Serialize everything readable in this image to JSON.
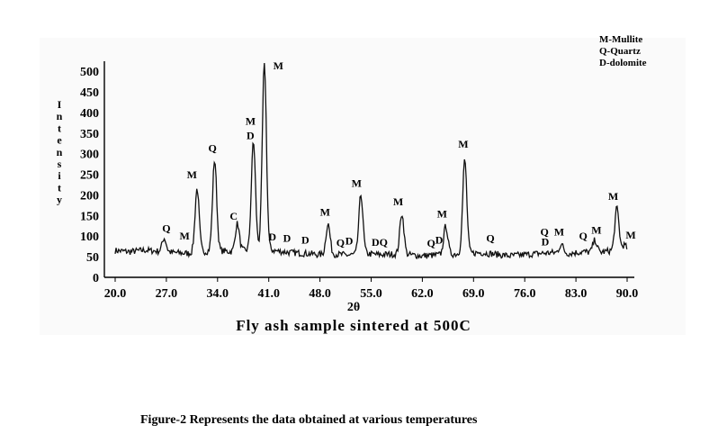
{
  "chart_data": {
    "type": "line",
    "subtitle": "Fly ash sample sintered at 500C",
    "xlabel": "2θ",
    "ylabel": "Intensity",
    "xlim": [
      20.0,
      90.0
    ],
    "ylim": [
      0,
      520
    ],
    "x_ticks": [
      "20.0",
      "27.0",
      "34.0",
      "41.0",
      "48.0",
      "55.0",
      "62.0",
      "69.0",
      "76.0",
      "83.0",
      "90.0"
    ],
    "x_tick_values": [
      20,
      27,
      34,
      41,
      48,
      55,
      62,
      69,
      76,
      83,
      90
    ],
    "y_ticks": [
      "0",
      "50",
      "100",
      "150",
      "200",
      "250",
      "300",
      "350",
      "400",
      "450",
      "500"
    ],
    "y_tick_values": [
      0,
      50,
      100,
      150,
      200,
      250,
      300,
      350,
      400,
      450,
      500
    ],
    "legend": [
      "M-Mullite",
      "Q-Quartz",
      "D-dolomite"
    ],
    "baseline": [
      [
        20,
        65
      ],
      [
        22,
        62
      ],
      [
        24,
        66
      ],
      [
        26,
        63
      ],
      [
        28,
        60
      ],
      [
        30,
        58
      ],
      [
        32,
        62
      ],
      [
        34,
        65
      ],
      [
        36,
        62
      ],
      [
        38,
        66
      ],
      [
        40,
        72
      ],
      [
        42,
        64
      ],
      [
        44,
        60
      ],
      [
        46,
        58
      ],
      [
        48,
        55
      ],
      [
        50,
        56
      ],
      [
        52,
        54
      ],
      [
        54,
        58
      ],
      [
        56,
        55
      ],
      [
        58,
        56
      ],
      [
        60,
        55
      ],
      [
        62,
        52
      ],
      [
        64,
        54
      ],
      [
        66,
        56
      ],
      [
        68,
        58
      ],
      [
        70,
        60
      ],
      [
        72,
        56
      ],
      [
        74,
        52
      ],
      [
        76,
        55
      ],
      [
        78,
        58
      ],
      [
        80,
        60
      ],
      [
        82,
        58
      ],
      [
        84,
        62
      ],
      [
        86,
        60
      ],
      [
        88,
        65
      ],
      [
        90,
        66
      ]
    ],
    "peaks": [
      {
        "x": 26.7,
        "y": 95,
        "label": "Q"
      },
      {
        "x": 31.2,
        "y": 215,
        "label": "M"
      },
      {
        "x": 33.6,
        "y": 285,
        "label": "Q"
      },
      {
        "x": 36.7,
        "y": 130,
        "label": "C"
      },
      {
        "x": 38.9,
        "y": 330,
        "label": "M/D"
      },
      {
        "x": 40.4,
        "y": 520,
        "label": "M"
      },
      {
        "x": 49.1,
        "y": 130,
        "label": "M"
      },
      {
        "x": 53.6,
        "y": 200,
        "label": "M"
      },
      {
        "x": 59.2,
        "y": 155,
        "label": "M"
      },
      {
        "x": 65.2,
        "y": 125,
        "label": "M"
      },
      {
        "x": 67.8,
        "y": 285,
        "label": "M"
      },
      {
        "x": 81.0,
        "y": 80,
        "label": "M"
      },
      {
        "x": 85.6,
        "y": 90,
        "label": "M"
      },
      {
        "x": 88.6,
        "y": 168,
        "label": "M"
      },
      {
        "x": 89.6,
        "y": 78,
        "label": "M"
      }
    ],
    "peak_labels": [
      {
        "text": "Q",
        "x": 27.0,
        "y": 110
      },
      {
        "text": "M",
        "x": 29.5,
        "y": 92
      },
      {
        "text": "M",
        "x": 30.5,
        "y": 240
      },
      {
        "text": "Q",
        "x": 33.3,
        "y": 305
      },
      {
        "text": "C",
        "x": 36.2,
        "y": 140
      },
      {
        "text": "M",
        "x": 38.5,
        "y": 370
      },
      {
        "text": "D",
        "x": 38.5,
        "y": 335
      },
      {
        "text": "M",
        "x": 42.3,
        "y": 505
      },
      {
        "text": "D",
        "x": 41.5,
        "y": 90
      },
      {
        "text": "D",
        "x": 43.5,
        "y": 86
      },
      {
        "text": "D",
        "x": 46.0,
        "y": 82
      },
      {
        "text": "M",
        "x": 48.7,
        "y": 150
      },
      {
        "text": "Q",
        "x": 50.8,
        "y": 75
      },
      {
        "text": "D",
        "x": 52.0,
        "y": 80
      },
      {
        "text": "M",
        "x": 53.0,
        "y": 220
      },
      {
        "text": "D",
        "x": 55.6,
        "y": 76
      },
      {
        "text": "Q",
        "x": 56.7,
        "y": 76
      },
      {
        "text": "M",
        "x": 58.7,
        "y": 175
      },
      {
        "text": "Q",
        "x": 63.2,
        "y": 74
      },
      {
        "text": "D",
        "x": 64.3,
        "y": 82
      },
      {
        "text": "M",
        "x": 64.7,
        "y": 145
      },
      {
        "text": "M",
        "x": 67.6,
        "y": 315
      },
      {
        "text": "Q",
        "x": 71.3,
        "y": 86
      },
      {
        "text": "Q",
        "x": 78.7,
        "y": 102
      },
      {
        "text": "D",
        "x": 78.8,
        "y": 78
      },
      {
        "text": "M",
        "x": 80.7,
        "y": 102
      },
      {
        "text": "Q",
        "x": 84.0,
        "y": 92
      },
      {
        "text": "M",
        "x": 85.8,
        "y": 106
      },
      {
        "text": "M",
        "x": 88.1,
        "y": 188
      },
      {
        "text": "M",
        "x": 90.5,
        "y": 94
      }
    ],
    "grid": false,
    "legend_position": "top-right"
  },
  "caption": "Figure-2 Represents the data obtained at various temperatures"
}
